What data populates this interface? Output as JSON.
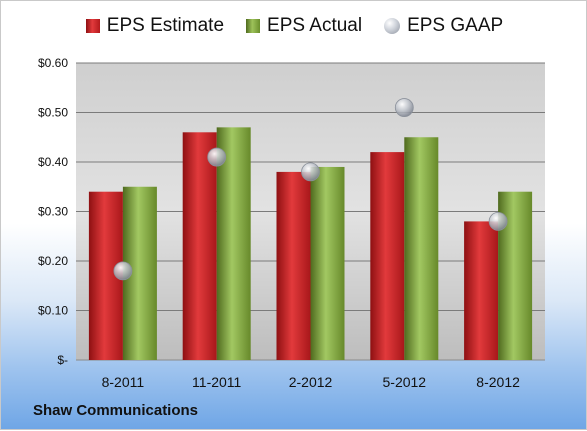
{
  "company": "Shaw Communications",
  "chart_data": {
    "type": "bar",
    "categories": [
      "8-2011",
      "11-2011",
      "2-2012",
      "5-2012",
      "8-2012"
    ],
    "series": [
      {
        "name": "EPS Estimate",
        "kind": "bar",
        "color": "#c8282b",
        "values": [
          0.34,
          0.46,
          0.38,
          0.42,
          0.28
        ]
      },
      {
        "name": "EPS Actual",
        "kind": "bar",
        "color": "#8db04a",
        "values": [
          0.35,
          0.47,
          0.39,
          0.45,
          0.34
        ]
      },
      {
        "name": "EPS GAAP",
        "kind": "marker",
        "color": "#b9bec7",
        "values": [
          0.18,
          0.41,
          0.38,
          0.51,
          0.28
        ]
      }
    ],
    "ylim": [
      0,
      0.6
    ],
    "yticks": [
      0,
      0.1,
      0.2,
      0.3,
      0.4,
      0.5,
      0.6
    ],
    "ytick_labels": [
      "$-",
      "$0.10",
      "$0.20",
      "$0.30",
      "$0.40",
      "$0.50",
      "$0.60"
    ],
    "grid": true,
    "legend_position": "top"
  }
}
